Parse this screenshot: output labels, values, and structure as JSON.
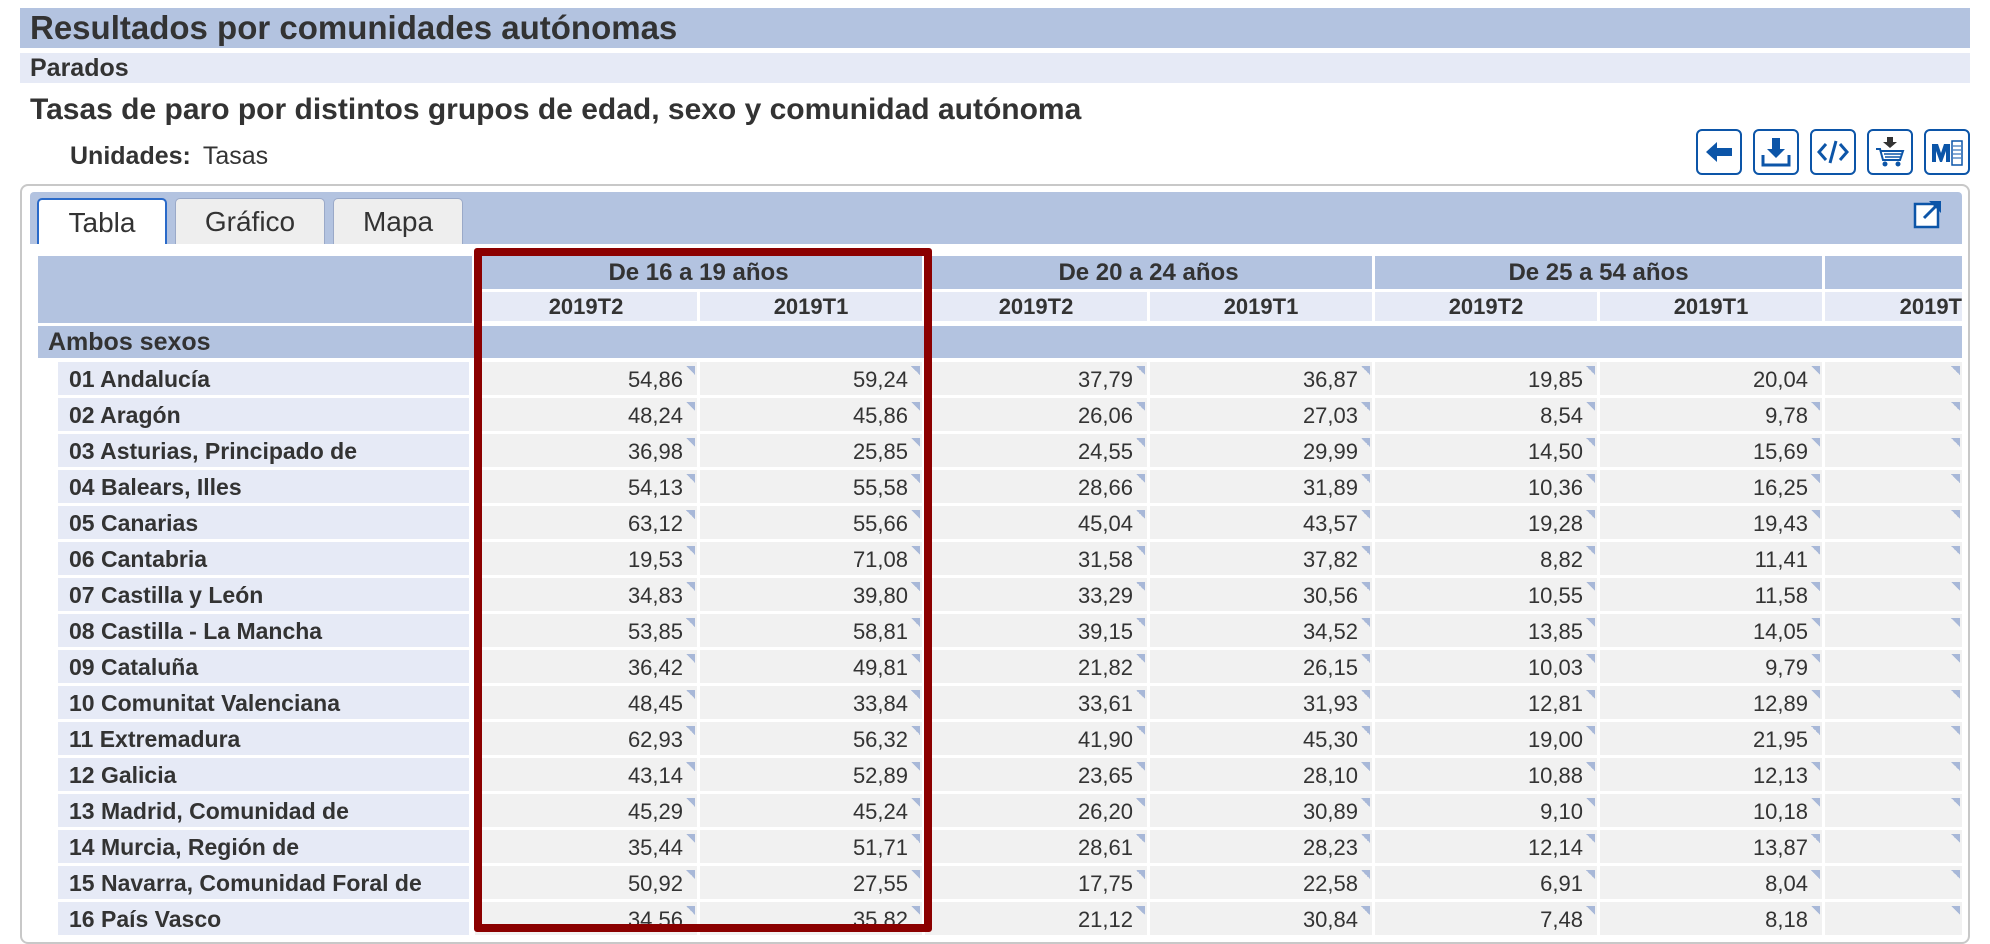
{
  "header": {
    "title": "Resultados por comunidades autónomas",
    "subtitle": "Parados",
    "table_title": "Tasas de paro por distintos grupos de edad, sexo y comunidad autónoma",
    "units_label": "Unidades:",
    "units_value": "Tasas"
  },
  "toolbar": {
    "buttons": [
      "back-arrow-icon",
      "download-icon",
      "embed-code-icon",
      "add-to-cart-icon",
      "my-tables-icon"
    ]
  },
  "tabs": [
    {
      "label": "Tabla",
      "active": true
    },
    {
      "label": "Gráfico",
      "active": false
    },
    {
      "label": "Mapa",
      "active": false
    }
  ],
  "table": {
    "age_groups": [
      "De 16 a 19 años",
      "De 20 a 24 años",
      "De 25 a 54 años"
    ],
    "periods": [
      "2019T2",
      "2019T1",
      "2019T2",
      "2019T1",
      "2019T2",
      "2019T1",
      "2019T"
    ],
    "group_label": "Ambos sexos",
    "rows": [
      {
        "label": "01 Andalucía",
        "values": [
          "54,86",
          "59,24",
          "37,79",
          "36,87",
          "19,85",
          "20,04"
        ]
      },
      {
        "label": "02 Aragón",
        "values": [
          "48,24",
          "45,86",
          "26,06",
          "27,03",
          "8,54",
          "9,78"
        ]
      },
      {
        "label": "03 Asturias, Principado de",
        "values": [
          "36,98",
          "25,85",
          "24,55",
          "29,99",
          "14,50",
          "15,69"
        ]
      },
      {
        "label": "04 Balears, Illes",
        "values": [
          "54,13",
          "55,58",
          "28,66",
          "31,89",
          "10,36",
          "16,25"
        ]
      },
      {
        "label": "05 Canarias",
        "values": [
          "63,12",
          "55,66",
          "45,04",
          "43,57",
          "19,28",
          "19,43"
        ]
      },
      {
        "label": "06 Cantabria",
        "values": [
          "19,53",
          "71,08",
          "31,58",
          "37,82",
          "8,82",
          "11,41"
        ]
      },
      {
        "label": "07 Castilla y León",
        "values": [
          "34,83",
          "39,80",
          "33,29",
          "30,56",
          "10,55",
          "11,58"
        ]
      },
      {
        "label": "08 Castilla - La Mancha",
        "values": [
          "53,85",
          "58,81",
          "39,15",
          "34,52",
          "13,85",
          "14,05"
        ]
      },
      {
        "label": "09 Cataluña",
        "values": [
          "36,42",
          "49,81",
          "21,82",
          "26,15",
          "10,03",
          "9,79"
        ]
      },
      {
        "label": "10 Comunitat Valenciana",
        "values": [
          "48,45",
          "33,84",
          "33,61",
          "31,93",
          "12,81",
          "12,89"
        ]
      },
      {
        "label": "11 Extremadura",
        "values": [
          "62,93",
          "56,32",
          "41,90",
          "45,30",
          "19,00",
          "21,95"
        ]
      },
      {
        "label": "12 Galicia",
        "values": [
          "43,14",
          "52,89",
          "23,65",
          "28,10",
          "10,88",
          "12,13"
        ]
      },
      {
        "label": "13 Madrid, Comunidad de",
        "values": [
          "45,29",
          "45,24",
          "26,20",
          "30,89",
          "9,10",
          "10,18"
        ]
      },
      {
        "label": "14 Murcia, Región de",
        "values": [
          "35,44",
          "51,71",
          "28,61",
          "28,23",
          "12,14",
          "13,87"
        ]
      },
      {
        "label": "15 Navarra, Comunidad Foral de",
        "values": [
          "50,92",
          "27,55",
          "17,75",
          "22,58",
          "6,91",
          "8,04"
        ]
      },
      {
        "label": "16 País Vasco",
        "values": [
          "34,56",
          "35,82",
          "21,12",
          "30,84",
          "7,48",
          "8,18"
        ]
      }
    ]
  },
  "colors": {
    "header_blue": "#b3c3e0",
    "header_light": "#e6eaf6",
    "highlight": "#8b0000",
    "icon_blue": "#0c55a8"
  }
}
